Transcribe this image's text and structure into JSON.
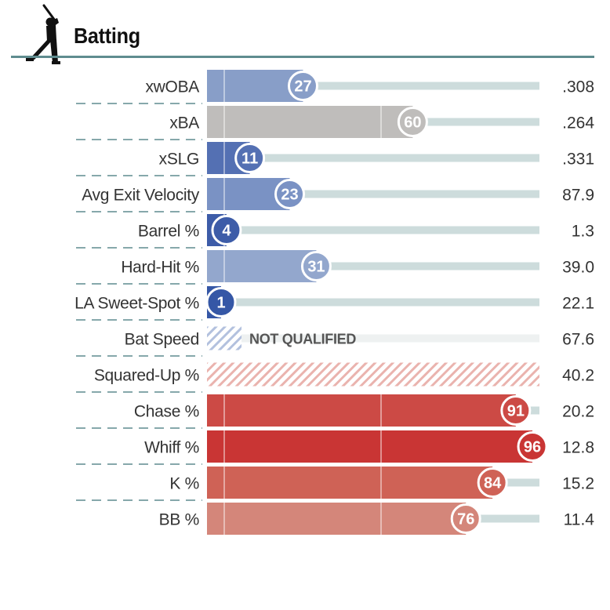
{
  "title": "Batting",
  "icon": "batter-silhouette-icon",
  "chart_data": {
    "type": "bar",
    "orientation": "horizontal",
    "title": "Batting",
    "xlim": [
      0,
      100
    ],
    "rows": [
      {
        "label": "xwOBA",
        "percentile": 27,
        "value": ".308",
        "qualified": true,
        "color": "#889ec8"
      },
      {
        "label": "xBA",
        "percentile": 60,
        "value": ".264",
        "qualified": true,
        "color": "#bfbdbb"
      },
      {
        "label": "xSLG",
        "percentile": 11,
        "value": ".331",
        "qualified": true,
        "color": "#5470b3"
      },
      {
        "label": "Avg Exit Velocity",
        "percentile": 23,
        "value": "87.9",
        "qualified": true,
        "color": "#7a92c4"
      },
      {
        "label": "Barrel %",
        "percentile": 4,
        "value": "1.3",
        "qualified": true,
        "color": "#3d5ca8"
      },
      {
        "label": "Hard-Hit %",
        "percentile": 31,
        "value": "39.0",
        "qualified": true,
        "color": "#93a7cd"
      },
      {
        "label": "LA Sweet-Spot %",
        "percentile": 1,
        "value": "22.1",
        "qualified": true,
        "color": "#3557a6"
      },
      {
        "label": "Bat Speed",
        "percentile": null,
        "value": "67.6",
        "qualified": false,
        "note": "NOT QUALIFIED",
        "color": "#a9b8d8"
      },
      {
        "label": "Squared-Up %",
        "percentile": null,
        "value": "40.2",
        "qualified": false,
        "color": "#e8a8a4"
      },
      {
        "label": "Chase %",
        "percentile": 91,
        "value": "20.2",
        "qualified": true,
        "color": "#cc4a45"
      },
      {
        "label": "Whiff %",
        "percentile": 96,
        "value": "12.8",
        "qualified": true,
        "color": "#c93534"
      },
      {
        "label": "K %",
        "percentile": 84,
        "value": "15.2",
        "qualified": true,
        "color": "#cf6256"
      },
      {
        "label": "BB %",
        "percentile": 76,
        "value": "11.4",
        "qualified": true,
        "color": "#d4867a"
      }
    ]
  }
}
